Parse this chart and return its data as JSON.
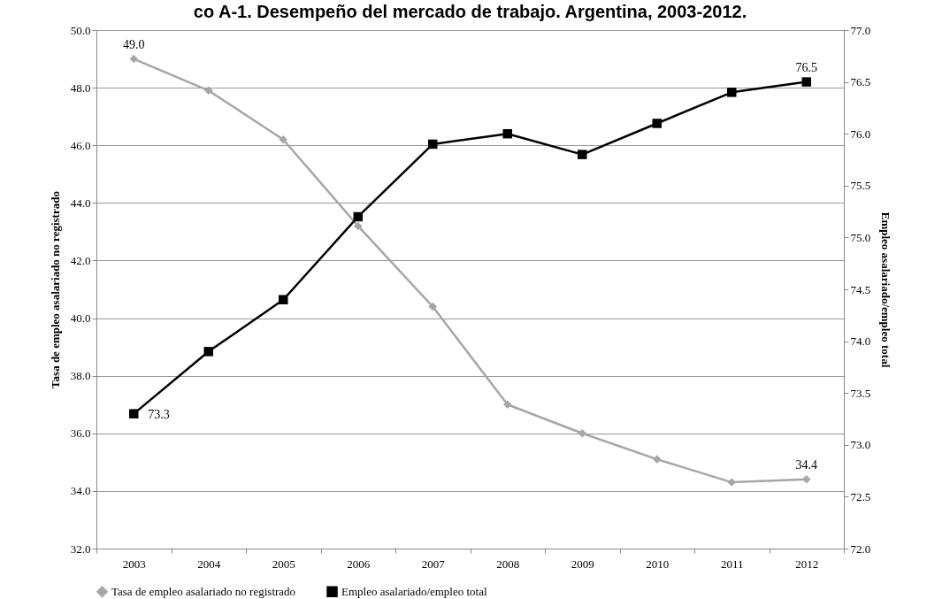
{
  "chart_data": {
    "type": "line",
    "title": "co A-1. Desempeño del mercado de trabajo. Argentina, 2003-2012.",
    "ylabel": "Tasa de empleo asalariado no registrado",
    "y2label": "Empleo asalariado/empleo total",
    "categories": [
      "2003",
      "2004",
      "2005",
      "2006",
      "2007",
      "2008",
      "2009",
      "2010",
      "2011",
      "2012"
    ],
    "series": [
      {
        "name": "Tasa de empleo asalariado no registrado",
        "color": "#a6a6a6",
        "marker": "diamond",
        "values": [
          49.0,
          47.9,
          46.2,
          43.2,
          40.4,
          37.0,
          36.0,
          35.1,
          34.3,
          34.4
        ],
        "value_labels": [
          "49.0",
          null,
          null,
          null,
          null,
          null,
          null,
          null,
          null,
          "34.4"
        ]
      },
      {
        "name": "Empleo asalariado/empleo total",
        "color": "#000000",
        "marker": "square",
        "axis": "y2",
        "values": [
          73.3,
          73.9,
          74.4,
          75.2,
          75.9,
          76.0,
          75.8,
          76.1,
          76.4,
          76.5
        ],
        "value_labels": [
          "73.3",
          null,
          null,
          null,
          null,
          null,
          null,
          null,
          null,
          "76.5"
        ]
      }
    ],
    "ylim": [
      32,
      50
    ],
    "yticks": [
      {
        "value": 32,
        "label": "32.0"
      },
      {
        "value": 34,
        "label": "34.0"
      },
      {
        "value": 36,
        "label": "36.0"
      },
      {
        "value": 38,
        "label": "38.0"
      },
      {
        "value": 40,
        "label": "40.0"
      },
      {
        "value": 42,
        "label": "42.0"
      },
      {
        "value": 44,
        "label": "44.0"
      },
      {
        "value": 46,
        "label": "46.0"
      },
      {
        "value": 48,
        "label": "48.0"
      },
      {
        "value": 50,
        "label": "50.0"
      }
    ],
    "y2lim": [
      72,
      77
    ],
    "y2ticks": [
      {
        "value": 72,
        "label": "72.0"
      },
      {
        "value": 72.5,
        "label": "72.5"
      },
      {
        "value": 73,
        "label": "73.0"
      },
      {
        "value": 73.5,
        "label": "73.5"
      },
      {
        "value": 74,
        "label": "74.0"
      },
      {
        "value": 74.5,
        "label": "74.5"
      },
      {
        "value": 75,
        "label": "75.0"
      },
      {
        "value": 75.5,
        "label": "75.5"
      },
      {
        "value": 76,
        "label": "76.0"
      },
      {
        "value": 76.5,
        "label": "76.5"
      },
      {
        "value": 77,
        "label": "77.0"
      }
    ],
    "grid": "y",
    "legend": "bottom",
    "line_style": "solid"
  }
}
